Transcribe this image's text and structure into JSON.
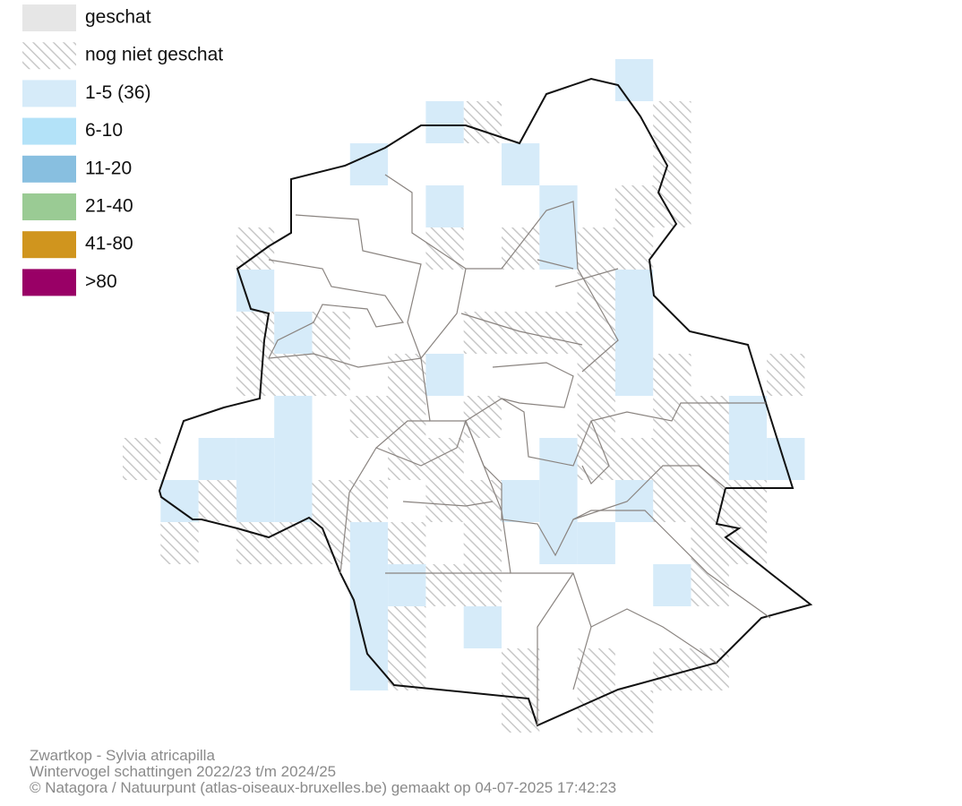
{
  "legend": {
    "items": [
      {
        "label": "geschat",
        "color": "#e6e6e6"
      },
      {
        "label": "nog niet geschat",
        "color": "#c8c8c8",
        "hatched": true
      },
      {
        "label": "1-5 (36)",
        "color": "#d6ebf9"
      },
      {
        "label": "6-10",
        "color": "#b3e2f8"
      },
      {
        "label": "11-20",
        "color": "#88bfe0"
      },
      {
        "label": "21-40",
        "color": "#9acb94"
      },
      {
        "label": "41-80",
        "color": "#d0951e"
      },
      {
        "label": ">80",
        "color": "#990066"
      }
    ]
  },
  "footer": {
    "lines": [
      "Zwartkop - Sylvia atricapilla",
      "Wintervogel schattingen 2022/23 t/m 2024/25",
      "© Natagora / Natuurpunt (atlas-oiseaux-bruxelles.be) gemaakt op 04-07-2025 17:42:23"
    ]
  }
}
